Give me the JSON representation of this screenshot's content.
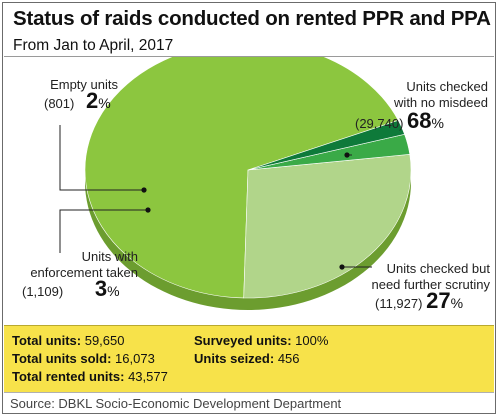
{
  "header": {
    "title": "Status of raids conducted on rented PPR and PPA",
    "subtitle": "From Jan to April, 2017"
  },
  "chart_data": {
    "type": "pie",
    "title": "Status of raids conducted on rented PPR and PPA",
    "subtitle": "From Jan to April, 2017",
    "slices": [
      {
        "label": "Units checked with no misdeed",
        "count": "(29,740)",
        "value": 29740,
        "percent": "68",
        "color": "#8cc63f"
      },
      {
        "label": "Units checked but need further scrutiny",
        "count": "(11,927)",
        "value": 11927,
        "percent": "27",
        "color": "#b1d58a"
      },
      {
        "label": "Units with enforcement taken",
        "count": "(1,109)",
        "value": 1109,
        "percent": "3",
        "color": "#3aaa47"
      },
      {
        "label": "Empty units",
        "count": "(801)",
        "value": 801,
        "percent": "2",
        "color": "#0e7a3a"
      }
    ]
  },
  "labels": {
    "nomisdeed_line1": "Units checked",
    "nomisdeed_line2": "with no misdeed",
    "nomisdeed_count": "(29,740)",
    "nomisdeed_pct": "68",
    "scrutiny_line1": "Units checked but",
    "scrutiny_line2": "need further scrutiny",
    "scrutiny_count": "(11,927)",
    "scrutiny_pct": "27",
    "enforce_line1": "Units with",
    "enforce_line2": "enforcement taken",
    "enforce_count": "(1,109)",
    "enforce_pct": "3",
    "empty_line1": "Empty units",
    "empty_count": "(801)",
    "empty_pct": "2",
    "percent_sign": "%"
  },
  "stats": {
    "total_units_label": "Total units:",
    "total_units_value": "59,650",
    "total_sold_label": "Total units sold:",
    "total_sold_value": "16,073",
    "total_rented_label": "Total rented units:",
    "total_rented_value": "43,577",
    "surveyed_label": "Surveyed units:",
    "surveyed_value": "100%",
    "seized_label": "Units seized:",
    "seized_value": "456"
  },
  "source": "Source: DBKL Socio-Economic Development Department"
}
